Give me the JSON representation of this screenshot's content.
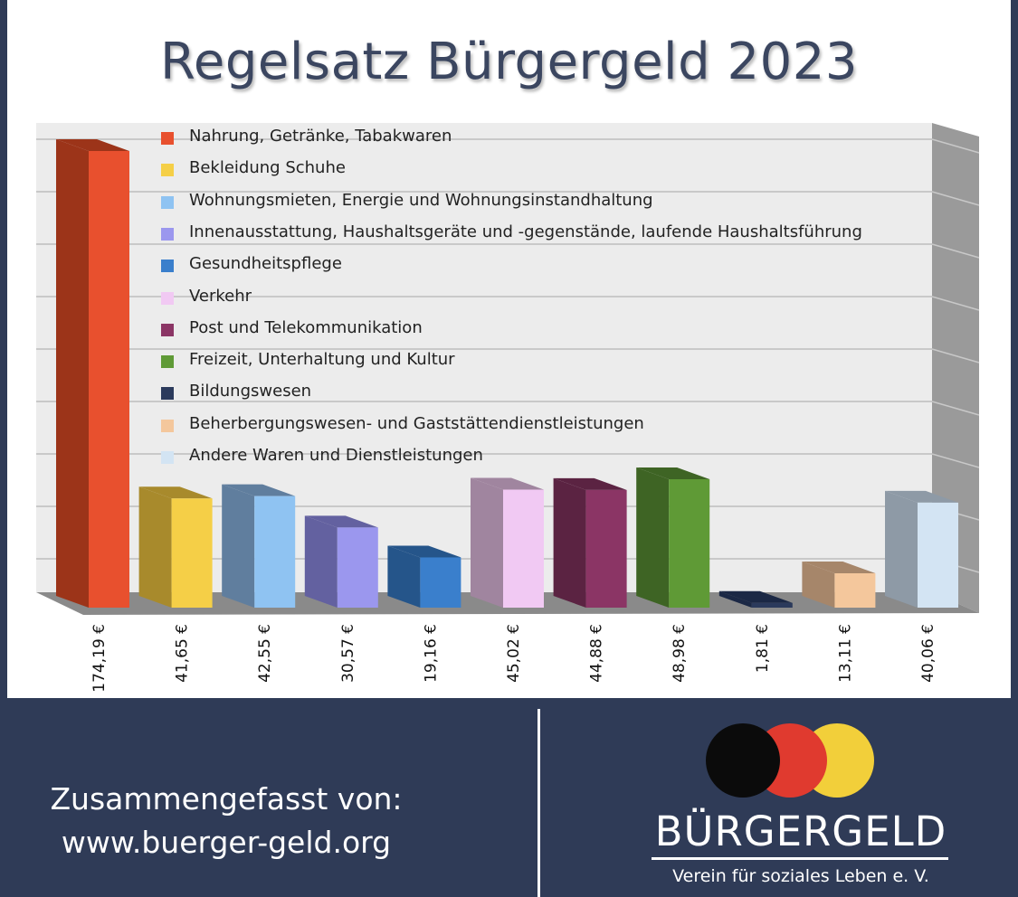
{
  "chart_data": {
    "type": "bar",
    "title": "Regelsatz Bürgergeld 2023",
    "categories": [
      "Nahrung, Getränke, Tabakwaren",
      "Bekleidung Schuhe",
      "Wohnungsmieten, Energie und Wohnungsinstandhaltung",
      "Innenausstattung, Haushaltsgeräte und -gegenstände, laufende Haushaltsführung",
      "Gesundheitspflege",
      "Verkehr",
      "Post und Telekommunikation",
      "Freizeit, Unterhaltung und Kultur",
      "Bildungswesen",
      "Beherbergungswesen- und Gaststättendienstleistungen",
      "Andere Waren und Dienstleistungen"
    ],
    "values": [
      174.19,
      41.65,
      42.55,
      30.57,
      19.16,
      45.02,
      44.88,
      48.98,
      1.81,
      13.11,
      40.06
    ],
    "value_labels": [
      "174,19 €",
      "41,65 €",
      "42,55 €",
      "30,57 €",
      "19,16 €",
      "45,02 €",
      "44,88 €",
      "48,98 €",
      "1,81 €",
      "13,11 €",
      "40,06 €"
    ],
    "colors": [
      "#e8502e",
      "#f5cf47",
      "#8fc3f2",
      "#9b97ee",
      "#3a7fcc",
      "#f1c9f3",
      "#8b3565",
      "#5f9a36",
      "#2b3a5c",
      "#f4c79c",
      "#d3e4f3"
    ],
    "side_colors": [
      "#9c3419",
      "#a88a2c",
      "#607e9e",
      "#6361a0",
      "#25558a",
      "#a0859f",
      "#5b2342",
      "#3e6424",
      "#1b2845",
      "#a6866a",
      "#8e9aa6"
    ],
    "ylim": [
      0,
      180
    ],
    "grid": true,
    "legend": "top-left",
    "xlabel": "",
    "ylabel": ""
  },
  "footer": {
    "credit_line1": "Zusammengefasst von:",
    "credit_line2": "www.buerger-geld.org"
  },
  "logo": {
    "word": "BÜRGERGELD",
    "subtitle": "Verein für soziales Leben e. V.",
    "circle_colors": [
      "#0b0b0b",
      "#e03a2f",
      "#f2cf3a"
    ]
  }
}
